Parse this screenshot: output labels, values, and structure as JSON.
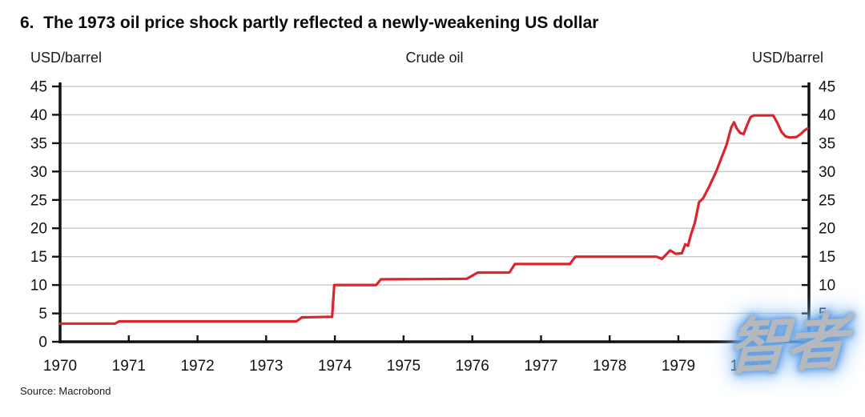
{
  "title": "6.  The 1973 oil price shock partly reflected a newly-weakening US dollar",
  "source": "Source: Macrobond",
  "watermark": {
    "text": "智者",
    "text_color": "#b5b8bc",
    "glow_color": "#5b9ae0"
  },
  "chart_data": {
    "type": "line",
    "title": "Crude oil",
    "ylabel_left": "USD/barrel",
    "ylabel_right": "USD/barrel",
    "xlim": [
      1970,
      1980.9
    ],
    "ylim": [
      0,
      45
    ],
    "x_ticks": [
      1970,
      1971,
      1972,
      1973,
      1974,
      1975,
      1976,
      1977,
      1978,
      1979,
      1980
    ],
    "y_ticks": [
      0,
      5,
      10,
      15,
      20,
      25,
      30,
      35,
      40,
      45
    ],
    "grid": "horizontal",
    "grid_color": "#c9c9c9",
    "axis_color": "#111111",
    "line_color": "#d9252b",
    "legend_position": "none",
    "series": [
      {
        "name": "Crude oil price (USD/barrel)",
        "points": [
          [
            1970.0,
            3.2
          ],
          [
            1970.8,
            3.2
          ],
          [
            1970.86,
            3.6
          ],
          [
            1973.44,
            3.6
          ],
          [
            1973.52,
            4.3
          ],
          [
            1973.96,
            4.4
          ],
          [
            1973.99,
            10.0
          ],
          [
            1974.6,
            10.0
          ],
          [
            1974.67,
            11.0
          ],
          [
            1975.92,
            11.1
          ],
          [
            1976.08,
            12.2
          ],
          [
            1976.54,
            12.2
          ],
          [
            1976.62,
            13.7
          ],
          [
            1977.42,
            13.7
          ],
          [
            1977.5,
            15.0
          ],
          [
            1978.68,
            15.0
          ],
          [
            1978.76,
            14.6
          ],
          [
            1978.88,
            16.1
          ],
          [
            1978.96,
            15.5
          ],
          [
            1979.05,
            15.6
          ],
          [
            1979.1,
            17.2
          ],
          [
            1979.14,
            16.9
          ],
          [
            1979.18,
            18.8
          ],
          [
            1979.24,
            21.0
          ],
          [
            1979.3,
            24.6
          ],
          [
            1979.36,
            25.3
          ],
          [
            1979.45,
            27.4
          ],
          [
            1979.55,
            30.0
          ],
          [
            1979.62,
            32.2
          ],
          [
            1979.7,
            34.7
          ],
          [
            1979.77,
            37.8
          ],
          [
            1979.81,
            38.7
          ],
          [
            1979.85,
            37.6
          ],
          [
            1979.9,
            36.8
          ],
          [
            1979.95,
            36.6
          ],
          [
            1980.0,
            38.2
          ],
          [
            1980.05,
            39.6
          ],
          [
            1980.1,
            39.9
          ],
          [
            1980.38,
            39.9
          ],
          [
            1980.44,
            38.6
          ],
          [
            1980.5,
            37.0
          ],
          [
            1980.56,
            36.2
          ],
          [
            1980.62,
            36.0
          ],
          [
            1980.72,
            36.1
          ],
          [
            1980.78,
            36.6
          ],
          [
            1980.84,
            37.3
          ],
          [
            1980.88,
            37.6
          ]
        ]
      }
    ]
  }
}
